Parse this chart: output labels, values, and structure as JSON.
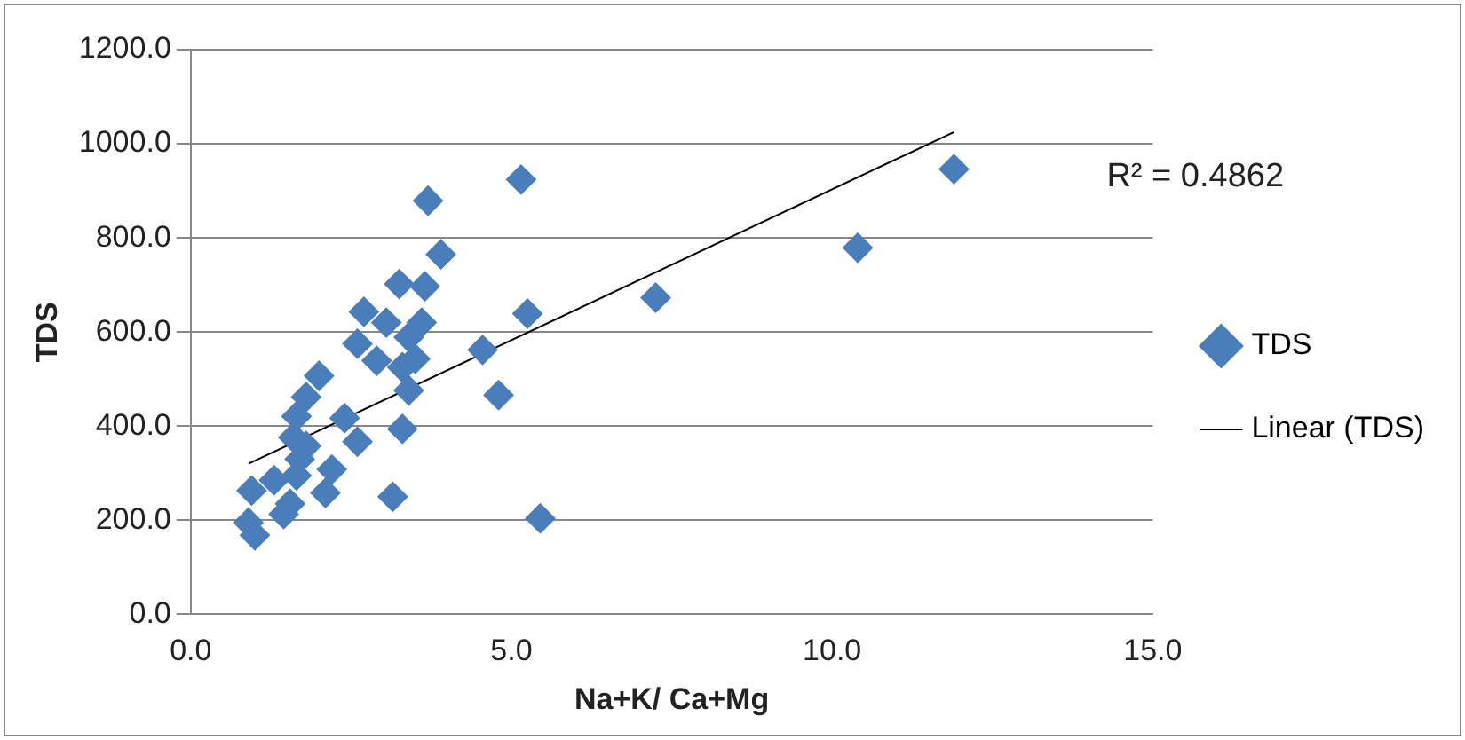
{
  "chart_data": {
    "type": "scatter",
    "xlabel": "Na+K/ Ca+Mg",
    "ylabel": "TDS",
    "xlim": [
      0,
      15
    ],
    "xticks": [
      {
        "value": 0,
        "label": "0.0"
      },
      {
        "value": 5,
        "label": "5.0"
      },
      {
        "value": 10,
        "label": "10.0"
      },
      {
        "value": 15,
        "label": "15.0"
      }
    ],
    "ylim": [
      0,
      1200
    ],
    "yticks": [
      {
        "value": 0,
        "label": "0.0"
      },
      {
        "value": 200,
        "label": "200.0"
      },
      {
        "value": 400,
        "label": "400.0"
      },
      {
        "value": 600,
        "label": "600.0"
      },
      {
        "value": 800,
        "label": "800.0"
      },
      {
        "value": 1000,
        "label": "1000.0"
      },
      {
        "value": 1200,
        "label": "1200.0"
      }
    ],
    "grid": "y",
    "legend": "right",
    "marker": "diamond",
    "annotations": [
      "R² = 0.4862"
    ],
    "series": [
      {
        "name": "TDS",
        "color": "#4a7ebb",
        "x": [
          1.0,
          0.9,
          0.95,
          1.3,
          1.45,
          1.55,
          1.65,
          1.7,
          1.8,
          1.6,
          1.65,
          1.8,
          2.0,
          2.1,
          3.15,
          2.6,
          2.2,
          2.4,
          2.6,
          2.7,
          2.9,
          3.05,
          3.25,
          3.3,
          3.4,
          3.4,
          3.6,
          3.5,
          3.65,
          3.7,
          3.9,
          3.3,
          4.55,
          4.8,
          5.15,
          5.25,
          5.45,
          7.25,
          10.4,
          11.9
        ],
        "values": [
          168,
          195,
          263,
          285,
          213,
          235,
          295,
          330,
          358,
          376,
          421,
          462,
          507,
          258,
          250,
          367,
          308,
          417,
          575,
          643,
          539,
          620,
          702,
          525,
          476,
          589,
          620,
          543,
          697,
          879,
          765,
          394,
          562,
          466,
          924,
          639,
          204,
          673,
          779,
          946
        ]
      },
      {
        "name": "Linear (TDS)",
        "type": "line",
        "color": "#000000",
        "marker": "none",
        "x": [
          0.9,
          11.9
        ],
        "values": [
          320,
          1025
        ]
      }
    ]
  }
}
